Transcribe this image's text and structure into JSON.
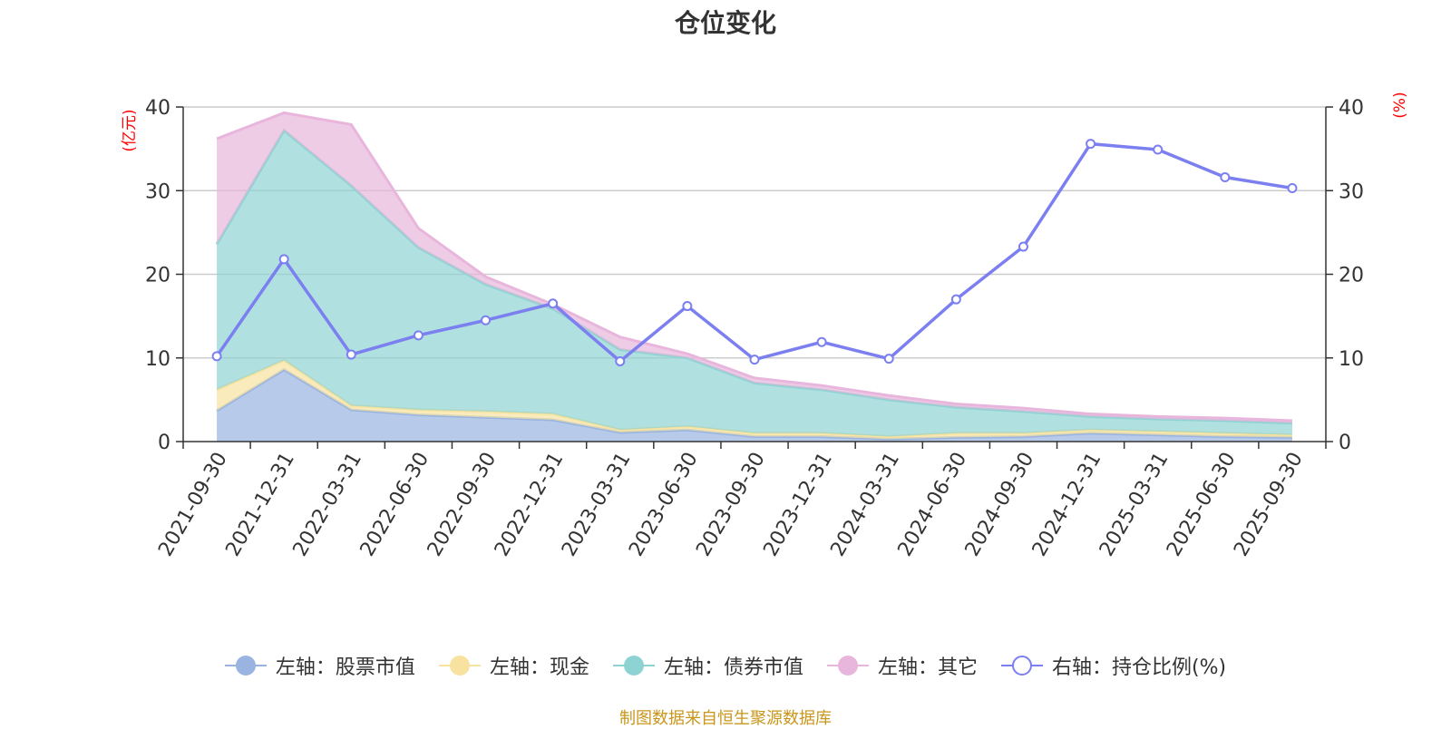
{
  "title": "仓位变化",
  "source_text": "制图数据来自恒生聚源数据库",
  "colors": {
    "stock": "#99b4e0",
    "cash": "#f7e39f",
    "bond": "#8ed3d3",
    "other": "#e8b6dc",
    "ratio": "#7b7ff0",
    "axis_label": "#ff0000",
    "source": "#c8961a"
  },
  "legend": [
    {
      "label": "左轴：股票市值",
      "color": "#99b4e0",
      "style": "filled"
    },
    {
      "label": "左轴：现金",
      "color": "#f7e39f",
      "style": "filled"
    },
    {
      "label": "左轴：债券市值",
      "color": "#8ed3d3",
      "style": "filled"
    },
    {
      "label": "左轴：其它",
      "color": "#e8b6dc",
      "style": "filled"
    },
    {
      "label": "右轴：持仓比例(%)",
      "color": "#7b7ff0",
      "style": "hollow"
    }
  ],
  "chart_data": {
    "type": "area",
    "title": "仓位变化",
    "categories": [
      "2021-09-30",
      "2021-12-31",
      "2022-03-31",
      "2022-06-30",
      "2022-09-30",
      "2022-12-31",
      "2023-03-31",
      "2023-06-30",
      "2023-09-30",
      "2023-12-31",
      "2024-03-31",
      "2024-06-30",
      "2024-09-30",
      "2024-12-31",
      "2025-03-31",
      "2025-06-30",
      "2025-09-30"
    ],
    "left_axis": {
      "label": "(亿元)",
      "min": 0,
      "max": 40,
      "ticks": [
        0,
        10,
        20,
        30,
        40
      ]
    },
    "right_axis": {
      "label": "(%)",
      "min": 0,
      "max": 40,
      "ticks": [
        0,
        10,
        20,
        30,
        40
      ]
    },
    "stacked_series": [
      {
        "name": "左轴：股票市值",
        "axis": "left",
        "values": [
          3.7,
          8.6,
          3.8,
          3.2,
          2.9,
          2.6,
          1.1,
          1.4,
          0.6,
          0.6,
          0.3,
          0.5,
          0.6,
          1.0,
          0.8,
          0.6,
          0.5
        ]
      },
      {
        "name": "左轴：现金",
        "axis": "left",
        "values": [
          2.5,
          1.1,
          0.5,
          0.6,
          0.7,
          0.7,
          0.3,
          0.4,
          0.4,
          0.4,
          0.3,
          0.5,
          0.4,
          0.4,
          0.4,
          0.4,
          0.3
        ]
      },
      {
        "name": "左轴：债券市值",
        "axis": "left",
        "values": [
          17.4,
          27.5,
          26.3,
          19.4,
          15.2,
          12.6,
          9.6,
          8.2,
          6.0,
          5.2,
          4.4,
          3.1,
          2.6,
          1.6,
          1.5,
          1.5,
          1.4
        ]
      },
      {
        "name": "左轴：其它",
        "axis": "left",
        "values": [
          12.6,
          2.1,
          7.3,
          2.3,
          0.9,
          0.5,
          1.5,
          0.5,
          0.6,
          0.5,
          0.5,
          0.4,
          0.4,
          0.3,
          0.3,
          0.3,
          0.3
        ]
      }
    ],
    "line_series": [
      {
        "name": "右轴：持仓比例(%)",
        "axis": "right",
        "values": [
          10.2,
          21.8,
          10.4,
          12.7,
          14.5,
          16.5,
          9.6,
          16.2,
          9.8,
          11.9,
          9.9,
          17.0,
          23.3,
          35.6,
          34.9,
          31.6,
          30.3
        ]
      }
    ]
  }
}
